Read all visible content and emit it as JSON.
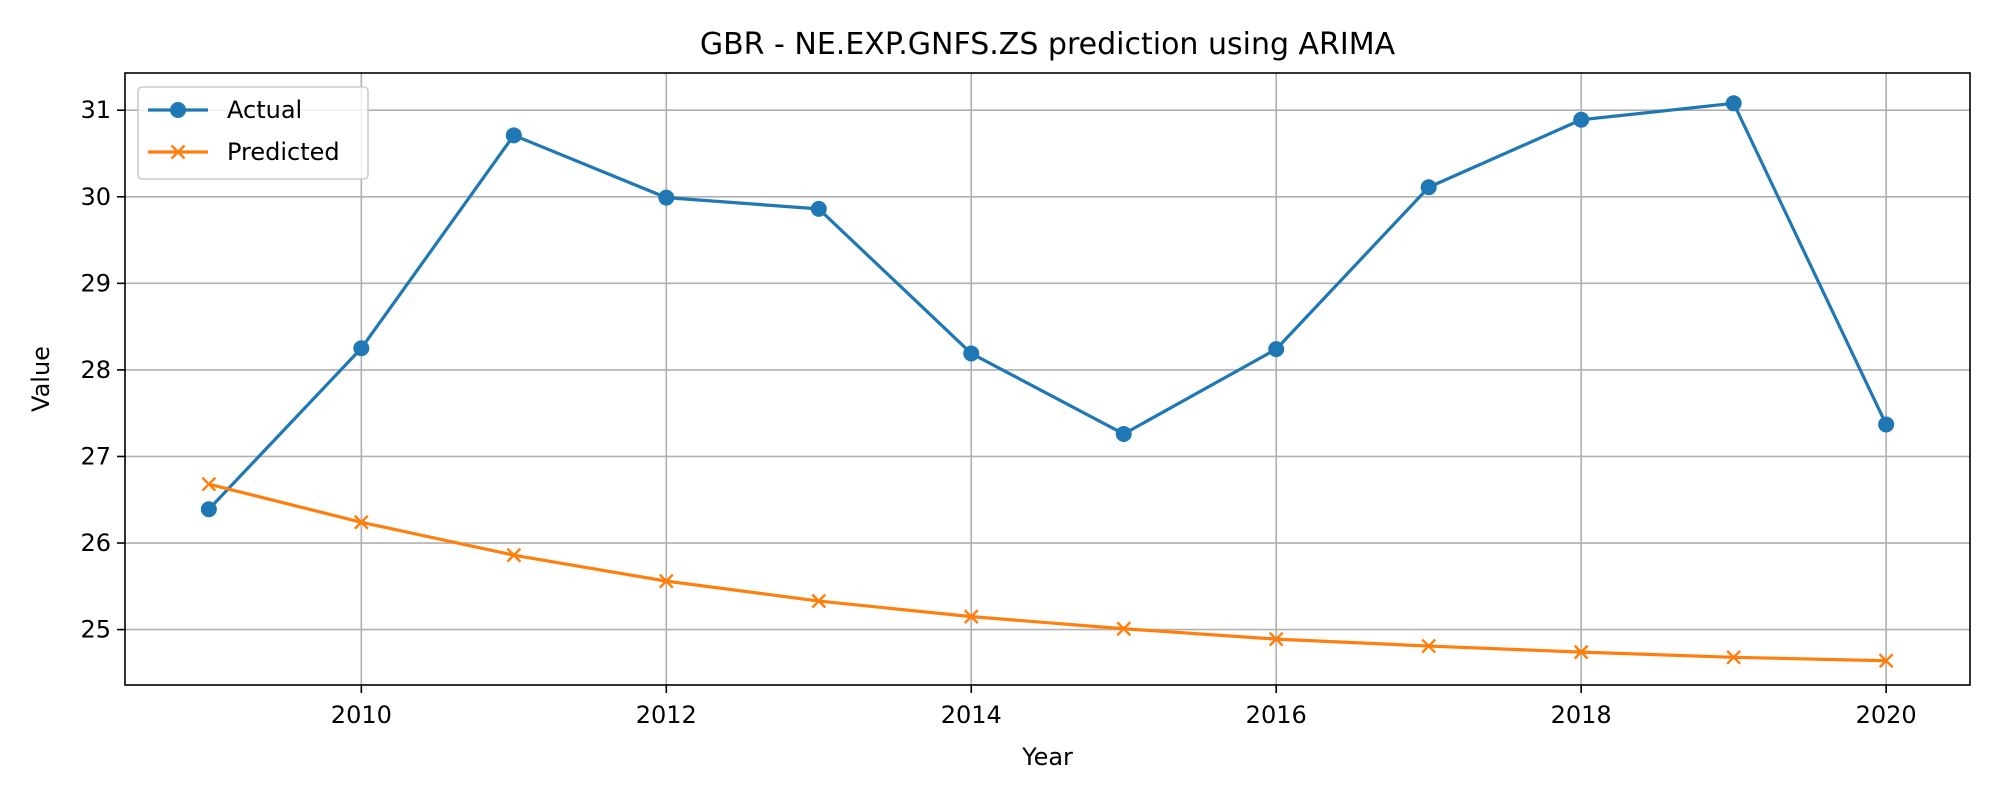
{
  "chart_data": {
    "type": "line",
    "title": "GBR - NE.EXP.GNFS.ZS prediction using ARIMA",
    "xlabel": "Year",
    "ylabel": "Value",
    "x": [
      2009,
      2010,
      2011,
      2012,
      2013,
      2014,
      2015,
      2016,
      2017,
      2018,
      2019,
      2020
    ],
    "xlim": [
      2008.45,
      2020.55
    ],
    "ylim": [
      24.36,
      31.43
    ],
    "xticks": [
      2010,
      2012,
      2014,
      2016,
      2018,
      2020
    ],
    "yticks": [
      25,
      26,
      27,
      28,
      29,
      30,
      31
    ],
    "grid": true,
    "legend_position": "top-left",
    "series": [
      {
        "name": "Actual",
        "color": "#1f77b4",
        "marker": "circle",
        "values": [
          26.39,
          28.25,
          30.71,
          29.99,
          29.86,
          28.19,
          27.26,
          28.24,
          30.11,
          30.89,
          31.08,
          27.37
        ]
      },
      {
        "name": "Predicted",
        "color": "#ff7f0e",
        "marker": "x",
        "values": [
          26.68,
          26.24,
          25.86,
          25.56,
          25.33,
          25.15,
          25.01,
          24.89,
          24.81,
          24.74,
          24.68,
          24.64
        ]
      }
    ]
  }
}
